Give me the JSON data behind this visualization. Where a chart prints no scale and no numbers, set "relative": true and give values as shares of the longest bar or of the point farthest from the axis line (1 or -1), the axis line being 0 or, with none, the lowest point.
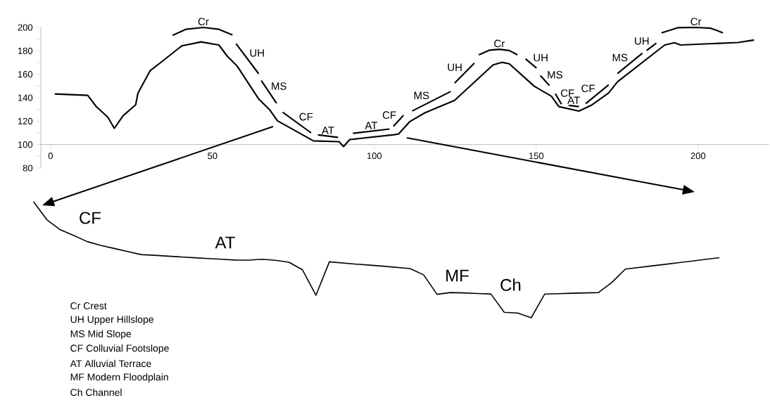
{
  "chart_data": [
    {
      "type": "line",
      "xlim": [
        -3,
        222
      ],
      "ylim": [
        80,
        200
      ],
      "xticks": [
        0,
        50,
        100,
        150,
        200
      ],
      "yticks": [
        80,
        {
          "value": 90,
          "label": null
        },
        100,
        {
          "value": 110,
          "label": null
        },
        120,
        {
          "value": 130,
          "label": null
        },
        140,
        {
          "value": 150,
          "label": null
        },
        160,
        {
          "value": 170,
          "label": null
        },
        180,
        {
          "value": 190,
          "label": null
        },
        200
      ],
      "series": [
        {
          "color": "#000000",
          "x": [
            1.3,
            11.5,
            14.1,
            17.7,
            19.7,
            22.4,
            26.3,
            27.0,
            30.8,
            34.0,
            40.5,
            46.5,
            52.0,
            54.6,
            57.7,
            64.3,
            67.8,
            70.1,
            81.2,
            89.1,
            90.5,
            92.4,
            106.1,
            107.5,
            111.0,
            115.6,
            124.8,
            136.7,
            139.4,
            141.7,
            149.4,
            154.7,
            157.0,
            163.2,
            167.0,
            172.4,
            175.1,
            189.7,
            192.7,
            194.6,
            212.3,
            217.3
          ],
          "values": [
            143.2,
            142,
            132.5,
            123.4,
            113.9,
            124.6,
            134,
            143.9,
            163.2,
            170,
            184.2,
            187.6,
            185,
            175.4,
            166.8,
            138.9,
            129.3,
            120.3,
            103.2,
            102.5,
            98.3,
            104.3,
            108.4,
            109.1,
            119.7,
            127.1,
            137.7,
            168,
            170.2,
            168.9,
            149.8,
            141.3,
            132.4,
            128.6,
            133.5,
            144.1,
            153.6,
            185,
            187,
            185,
            187.1,
            189.3
          ]
        },
        {
          "name": "Cr",
          "color": "#000000",
          "x": [
            37.7,
            41.8,
            47.2,
            52.0,
            56.2
          ],
          "values": [
            193.2,
            198.4,
            200,
            198.4,
            193.6
          ]
        },
        {
          "name": "UH",
          "color": "#000000",
          "x": [
            57.3,
            64.3
          ],
          "values": [
            186.1,
            160.4
          ]
        },
        {
          "name": "MS",
          "color": "#000000",
          "x": [
            65.1,
            69.8
          ],
          "values": [
            154.6,
            135.3
          ]
        },
        {
          "name": "CF",
          "color": "#000000",
          "x": [
            71.7,
            80.5
          ],
          "values": [
            127.6,
            110
          ]
        },
        {
          "name": "AT",
          "color": "#000000",
          "x": [
            82.6,
            88.8
          ],
          "values": [
            108.3,
            106.2
          ]
        },
        {
          "name": "AT",
          "color": "#000000",
          "x": [
            93.4,
            104.7
          ],
          "values": [
            109.6,
            113.3
          ]
        },
        {
          "name": "CF",
          "color": "#000000",
          "x": [
            105.9,
            109.0
          ],
          "values": [
            115.5,
            125
          ]
        },
        {
          "name": "MS",
          "color": "#000000",
          "x": [
            111.7,
            123.6
          ],
          "values": [
            128.7,
            145.3
          ]
        },
        {
          "name": "UH",
          "color": "#000000",
          "x": [
            124.8,
            130.9
          ],
          "values": [
            152.5,
            169.5
          ]
        },
        {
          "name": "Cr",
          "color": "#000000",
          "x": [
            132.3,
            135.6,
            138.6,
            141.7,
            144.2
          ],
          "values": [
            176.6,
            180.6,
            181.3,
            180.3,
            176.6
          ]
        },
        {
          "name": "UH",
          "color": "#000000",
          "x": [
            146.7,
            150.1
          ],
          "values": [
            173.2,
            165.3
          ]
        },
        {
          "name": "MS",
          "color": "#000000",
          "x": [
            151.3,
            154.1
          ],
          "values": [
            158.9,
            150.4
          ]
        },
        {
          "name": "CF",
          "color": "#000000",
          "x": [
            155.9,
            157.8
          ],
          "values": [
            143.4,
            134.5
          ]
        },
        {
          "name": "AT",
          "color": "#000000",
          "x": [
            160.0,
            163.2
          ],
          "values": [
            133.5,
            132.4
          ]
        },
        {
          "name": "CF",
          "color": "#000000",
          "x": [
            165.3,
            172.4
          ],
          "values": [
            135,
            151
          ]
        },
        {
          "name": "MS",
          "color": "#000000",
          "x": [
            175.1,
            182.8
          ],
          "values": [
            160.6,
            178
          ]
        },
        {
          "name": "UH",
          "color": "#000000",
          "x": [
            184.1,
            187.1
          ],
          "values": [
            180.3,
            186.6
          ]
        },
        {
          "name": "Cr",
          "color": "#000000",
          "x": [
            188.7,
            193.9,
            199.3,
            203.9,
            207.7
          ],
          "values": [
            195.4,
            199.8,
            200,
            199.3,
            195.4
          ]
        }
      ]
    },
    {
      "type": "line",
      "relative": true,
      "color": "#000000",
      "categories": [
        null,
        null,
        null,
        null,
        null,
        null,
        null,
        null,
        null,
        null,
        null,
        null,
        null,
        null,
        null,
        null,
        null,
        null,
        null,
        null,
        null,
        null,
        null,
        null,
        null,
        null,
        null,
        null,
        null,
        null,
        null,
        null,
        null,
        null,
        null,
        null,
        null,
        null,
        null,
        null,
        null,
        null,
        null,
        null,
        null,
        null,
        null,
        null,
        null,
        null,
        null,
        null
      ],
      "values": [
        1.0,
        0.844,
        0.758,
        0.708,
        0.656,
        0.623,
        0.597,
        0.57,
        0.544,
        0.538,
        0.531,
        0.524,
        0.517,
        0.51,
        0.504,
        0.497,
        0.496,
        0.504,
        0.495,
        0.478,
        0.413,
        0.194,
        0.482,
        0.472,
        0.462,
        0.453,
        0.444,
        0.434,
        0.424,
        0.37,
        0.202,
        0.217,
        0.214,
        0.209,
        0.205,
        0.047,
        0.041,
        0,
        0.204,
        0.207,
        0.211,
        0.214,
        0.217,
        0.305,
        0.419,
        0.433,
        0.447,
        0.461,
        0.475,
        0.489,
        0.504,
        0.518
      ],
      "annotations": [
        "CF",
        "AT",
        "MF",
        "Ch",
        "Cr Crest",
        "UH Upper Hillslope",
        "MS Mid Slope",
        "CF Colluvial Footslope",
        "AT Alluvial Terrace",
        "MF Modern Floodplain",
        "Ch Channel"
      ]
    }
  ]
}
